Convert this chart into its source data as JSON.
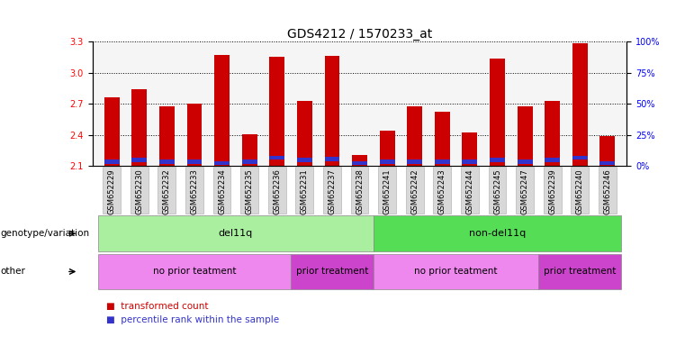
{
  "title": "GDS4212 / 1570233_at",
  "samples": [
    "GSM652229",
    "GSM652230",
    "GSM652232",
    "GSM652233",
    "GSM652234",
    "GSM652235",
    "GSM652236",
    "GSM652231",
    "GSM652237",
    "GSM652238",
    "GSM652241",
    "GSM652242",
    "GSM652243",
    "GSM652244",
    "GSM652245",
    "GSM652247",
    "GSM652239",
    "GSM652240",
    "GSM652246"
  ],
  "red_values": [
    2.76,
    2.84,
    2.68,
    2.7,
    3.17,
    2.41,
    3.15,
    2.73,
    3.16,
    2.21,
    2.44,
    2.68,
    2.62,
    2.42,
    3.14,
    2.68,
    2.73,
    3.28,
    2.39
  ],
  "blue_bottom": [
    2.12,
    2.14,
    2.12,
    2.12,
    2.11,
    2.12,
    2.16,
    2.14,
    2.15,
    2.11,
    2.12,
    2.12,
    2.12,
    2.12,
    2.14,
    2.12,
    2.14,
    2.16,
    2.11
  ],
  "blue_height": [
    0.04,
    0.04,
    0.04,
    0.04,
    0.04,
    0.04,
    0.04,
    0.04,
    0.04,
    0.04,
    0.04,
    0.04,
    0.04,
    0.04,
    0.04,
    0.04,
    0.04,
    0.04,
    0.04
  ],
  "base": 2.1,
  "ylim_left": [
    2.1,
    3.3
  ],
  "yticks_left": [
    2.1,
    2.4,
    2.7,
    3.0,
    3.3
  ],
  "yticks_right": [
    0,
    25,
    50,
    75,
    100
  ],
  "bar_width": 0.55,
  "red_color": "#cc0000",
  "blue_color": "#3333cc",
  "genotype_groups": [
    {
      "label": "del11q",
      "start": 0,
      "end": 10,
      "color": "#aaeea0"
    },
    {
      "label": "non-del11q",
      "start": 10,
      "end": 19,
      "color": "#55dd55"
    }
  ],
  "other_groups": [
    {
      "label": "no prior teatment",
      "start": 0,
      "end": 7,
      "color": "#ee88ee"
    },
    {
      "label": "prior treatment",
      "start": 7,
      "end": 10,
      "color": "#cc44cc"
    },
    {
      "label": "no prior teatment",
      "start": 10,
      "end": 16,
      "color": "#ee88ee"
    },
    {
      "label": "prior treatment",
      "start": 16,
      "end": 19,
      "color": "#cc44cc"
    }
  ],
  "legend_items": [
    {
      "label": "transformed count",
      "color": "#cc0000"
    },
    {
      "label": "percentile rank within the sample",
      "color": "#3333cc"
    }
  ],
  "genotype_label": "genotype/variation",
  "other_label": "other",
  "background_color": "#ffffff",
  "title_fontsize": 10,
  "tick_fontsize": 7,
  "sample_fontsize": 6,
  "label_fontsize": 8
}
